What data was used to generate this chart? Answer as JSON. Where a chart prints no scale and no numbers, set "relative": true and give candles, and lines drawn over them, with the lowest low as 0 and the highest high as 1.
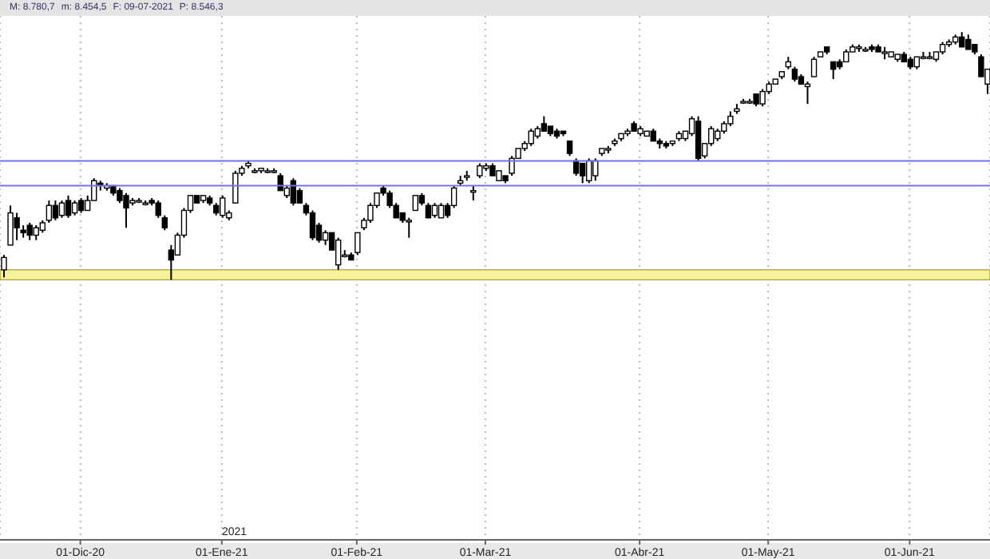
{
  "chart_data": {
    "type": "candlestick",
    "relative": true,
    "annotations": [
      "M: 8.780,7",
      "m: 8.454,5",
      "F: 09-07-2021",
      "P: 8.546,3",
      "2021"
    ],
    "categories": [
      null,
      null,
      null,
      null,
      null,
      null,
      null,
      null,
      null,
      null,
      null,
      null,
      "01-Dic-20",
      null,
      null,
      null,
      null,
      null,
      null,
      null,
      null,
      null,
      null,
      null,
      null,
      null,
      null,
      null,
      null,
      null,
      null,
      null,
      null,
      null,
      "01-Ene-21",
      null,
      null,
      null,
      null,
      null,
      null,
      null,
      null,
      null,
      null,
      null,
      null,
      null,
      null,
      null,
      null,
      null,
      null,
      null,
      null,
      "01-Feb-21",
      null,
      null,
      null,
      null,
      null,
      null,
      null,
      null,
      null,
      null,
      null,
      null,
      null,
      null,
      null,
      null,
      null,
      null,
      null,
      "01-Mar-21",
      null,
      null,
      null,
      null,
      null,
      null,
      null,
      null,
      null,
      null,
      null,
      null,
      null,
      null,
      null,
      null,
      null,
      null,
      null,
      null,
      null,
      null,
      null,
      "01-Abr-21",
      null,
      null,
      null,
      null,
      null,
      null,
      null,
      null,
      null,
      null,
      null,
      null,
      null,
      null,
      null,
      null,
      null,
      null,
      null,
      "01-May-21",
      null,
      null,
      null,
      null,
      null,
      null,
      null,
      null,
      null,
      null,
      null,
      null,
      null,
      null,
      null,
      null,
      null,
      null,
      null,
      null,
      null,
      "01-Jun-21",
      null,
      null,
      null,
      null,
      null,
      null,
      null,
      null,
      null,
      null,
      null,
      null
    ],
    "ohlc": [
      [
        0.04,
        0.1,
        0.01,
        0.09
      ],
      [
        0.14,
        0.3,
        0.14,
        0.27
      ],
      [
        0.25,
        0.27,
        0.16,
        0.21
      ],
      [
        0.2,
        0.22,
        0.17,
        0.19
      ],
      [
        0.22,
        0.23,
        0.16,
        0.18
      ],
      [
        0.18,
        0.22,
        0.16,
        0.21
      ],
      [
        0.2,
        0.24,
        0.19,
        0.23
      ],
      [
        0.24,
        0.32,
        0.23,
        0.3
      ],
      [
        0.3,
        0.32,
        0.24,
        0.25
      ],
      [
        0.26,
        0.32,
        0.25,
        0.31
      ],
      [
        0.32,
        0.34,
        0.25,
        0.26
      ],
      [
        0.27,
        0.32,
        0.26,
        0.31
      ],
      [
        0.32,
        0.33,
        0.27,
        0.28
      ],
      [
        0.28,
        0.34,
        0.28,
        0.32
      ],
      [
        0.32,
        0.41,
        0.32,
        0.4
      ],
      [
        0.39,
        0.4,
        0.36,
        0.38
      ],
      [
        0.37,
        0.39,
        0.36,
        0.38
      ],
      [
        0.38,
        0.38,
        0.34,
        0.35
      ],
      [
        0.36,
        0.37,
        0.31,
        0.32
      ],
      [
        0.34,
        0.35,
        0.21,
        0.29
      ],
      [
        0.31,
        0.33,
        0.3,
        0.32
      ],
      [
        0.32,
        0.33,
        0.31,
        0.32
      ],
      [
        0.31,
        0.32,
        0.3,
        0.31
      ],
      [
        0.32,
        0.33,
        0.3,
        0.31
      ],
      [
        0.31,
        0.32,
        0.25,
        0.26
      ],
      [
        0.25,
        0.26,
        0.2,
        0.21
      ],
      [
        0.12,
        0.14,
        0.0,
        0.08
      ],
      [
        0.1,
        0.19,
        0.1,
        0.18
      ],
      [
        0.18,
        0.29,
        0.17,
        0.28
      ],
      [
        0.28,
        0.34,
        0.27,
        0.34
      ],
      [
        0.34,
        0.34,
        0.31,
        0.31
      ],
      [
        0.32,
        0.34,
        0.31,
        0.34
      ],
      [
        0.33,
        0.34,
        0.3,
        0.31
      ],
      [
        0.3,
        0.31,
        0.26,
        0.27
      ],
      [
        0.26,
        0.34,
        0.25,
        0.33
      ],
      [
        0.25,
        0.28,
        0.24,
        0.27
      ],
      [
        0.31,
        0.44,
        0.31,
        0.43
      ],
      [
        0.43,
        0.46,
        0.42,
        0.45
      ],
      [
        0.46,
        0.48,
        0.45,
        0.47
      ],
      [
        0.44,
        0.45,
        0.43,
        0.44
      ],
      [
        0.44,
        0.45,
        0.43,
        0.45
      ],
      [
        0.44,
        0.45,
        0.43,
        0.44
      ],
      [
        0.44,
        0.45,
        0.43,
        0.44
      ],
      [
        0.42,
        0.43,
        0.36,
        0.36
      ],
      [
        0.34,
        0.38,
        0.33,
        0.37
      ],
      [
        0.4,
        0.41,
        0.3,
        0.31
      ],
      [
        0.36,
        0.37,
        0.31,
        0.31
      ],
      [
        0.3,
        0.31,
        0.26,
        0.27
      ],
      [
        0.27,
        0.28,
        0.16,
        0.17
      ],
      [
        0.22,
        0.23,
        0.15,
        0.16
      ],
      [
        0.16,
        0.2,
        0.14,
        0.19
      ],
      [
        0.19,
        0.19,
        0.12,
        0.12
      ],
      [
        0.06,
        0.17,
        0.04,
        0.16
      ],
      [
        0.1,
        0.12,
        0.09,
        0.1
      ],
      [
        0.1,
        0.11,
        0.08,
        0.08
      ],
      [
        0.11,
        0.19,
        0.1,
        0.19
      ],
      [
        0.21,
        0.25,
        0.2,
        0.24
      ],
      [
        0.24,
        0.31,
        0.23,
        0.3
      ],
      [
        0.3,
        0.35,
        0.29,
        0.35
      ],
      [
        0.37,
        0.38,
        0.34,
        0.35
      ],
      [
        0.35,
        0.36,
        0.29,
        0.3
      ],
      [
        0.3,
        0.31,
        0.25,
        0.25
      ],
      [
        0.27,
        0.27,
        0.23,
        0.24
      ],
      [
        0.24,
        0.25,
        0.17,
        0.24
      ],
      [
        0.28,
        0.34,
        0.28,
        0.34
      ],
      [
        0.34,
        0.35,
        0.3,
        0.31
      ],
      [
        0.3,
        0.31,
        0.25,
        0.25
      ],
      [
        0.26,
        0.31,
        0.25,
        0.3
      ],
      [
        0.25,
        0.31,
        0.25,
        0.3
      ],
      [
        0.3,
        0.31,
        0.25,
        0.26
      ],
      [
        0.3,
        0.38,
        0.29,
        0.37
      ],
      [
        0.39,
        0.42,
        0.38,
        0.4
      ],
      [
        0.42,
        0.44,
        0.4,
        0.42
      ],
      [
        0.36,
        0.38,
        0.32,
        0.36
      ],
      [
        0.42,
        0.47,
        0.41,
        0.46
      ],
      [
        0.45,
        0.47,
        0.44,
        0.46
      ],
      [
        0.46,
        0.47,
        0.42,
        0.42
      ],
      [
        0.4,
        0.44,
        0.4,
        0.44
      ],
      [
        0.42,
        0.42,
        0.39,
        0.4
      ],
      [
        0.43,
        0.5,
        0.42,
        0.49
      ],
      [
        0.49,
        0.53,
        0.49,
        0.53
      ],
      [
        0.53,
        0.56,
        0.52,
        0.55
      ],
      [
        0.55,
        0.61,
        0.54,
        0.6
      ],
      [
        0.58,
        0.62,
        0.57,
        0.61
      ],
      [
        0.63,
        0.66,
        0.6,
        0.6
      ],
      [
        0.62,
        0.62,
        0.58,
        0.59
      ],
      [
        0.6,
        0.61,
        0.57,
        0.58
      ],
      [
        0.6,
        0.6,
        0.58,
        0.59
      ],
      [
        0.56,
        0.56,
        0.5,
        0.51
      ],
      [
        0.48,
        0.49,
        0.42,
        0.43
      ],
      [
        0.47,
        0.47,
        0.39,
        0.42
      ],
      [
        0.4,
        0.49,
        0.39,
        0.48
      ],
      [
        0.42,
        0.49,
        0.4,
        0.48
      ],
      [
        0.51,
        0.53,
        0.5,
        0.53
      ],
      [
        0.53,
        0.54,
        0.51,
        0.53
      ],
      [
        0.55,
        0.57,
        0.54,
        0.56
      ],
      [
        0.57,
        0.59,
        0.56,
        0.59
      ],
      [
        0.59,
        0.61,
        0.58,
        0.6
      ],
      [
        0.63,
        0.64,
        0.6,
        0.6
      ],
      [
        0.59,
        0.62,
        0.58,
        0.61
      ],
      [
        0.58,
        0.6,
        0.58,
        0.6
      ],
      [
        0.6,
        0.61,
        0.56,
        0.56
      ],
      [
        0.56,
        0.57,
        0.53,
        0.55
      ],
      [
        0.55,
        0.56,
        0.53,
        0.54
      ],
      [
        0.55,
        0.56,
        0.54,
        0.56
      ],
      [
        0.57,
        0.6,
        0.56,
        0.59
      ],
      [
        0.57,
        0.6,
        0.56,
        0.6
      ],
      [
        0.59,
        0.66,
        0.58,
        0.65
      ],
      [
        0.64,
        0.66,
        0.48,
        0.49
      ],
      [
        0.5,
        0.55,
        0.49,
        0.55
      ],
      [
        0.55,
        0.62,
        0.54,
        0.61
      ],
      [
        0.57,
        0.61,
        0.56,
        0.6
      ],
      [
        0.6,
        0.64,
        0.59,
        0.63
      ],
      [
        0.63,
        0.68,
        0.62,
        0.66
      ],
      [
        0.68,
        0.71,
        0.67,
        0.69
      ],
      [
        0.72,
        0.73,
        0.71,
        0.72
      ],
      [
        0.72,
        0.73,
        0.71,
        0.72
      ],
      [
        0.75,
        0.75,
        0.7,
        0.71
      ],
      [
        0.71,
        0.77,
        0.7,
        0.76
      ],
      [
        0.76,
        0.8,
        0.75,
        0.79
      ],
      [
        0.79,
        0.81,
        0.79,
        0.81
      ],
      [
        0.82,
        0.84,
        0.81,
        0.84
      ],
      [
        0.86,
        0.9,
        0.85,
        0.88
      ],
      [
        0.85,
        0.86,
        0.8,
        0.81
      ],
      [
        0.82,
        0.83,
        0.79,
        0.79
      ],
      [
        0.78,
        0.8,
        0.71,
        0.79
      ],
      [
        0.82,
        0.9,
        0.82,
        0.89
      ],
      [
        0.9,
        0.92,
        0.9,
        0.92
      ],
      [
        0.94,
        0.94,
        0.91,
        0.92
      ],
      [
        0.88,
        0.88,
        0.81,
        0.85
      ],
      [
        0.88,
        0.89,
        0.85,
        0.86
      ],
      [
        0.88,
        0.93,
        0.88,
        0.92
      ],
      [
        0.92,
        0.95,
        0.92,
        0.94
      ],
      [
        0.94,
        0.95,
        0.92,
        0.94
      ],
      [
        0.93,
        0.94,
        0.92,
        0.93
      ],
      [
        0.94,
        0.95,
        0.92,
        0.93
      ],
      [
        0.94,
        0.95,
        0.92,
        0.92
      ],
      [
        0.92,
        0.94,
        0.89,
        0.92
      ],
      [
        0.9,
        0.92,
        0.9,
        0.92
      ],
      [
        0.89,
        0.91,
        0.88,
        0.91
      ],
      [
        0.91,
        0.92,
        0.88,
        0.88
      ],
      [
        0.89,
        0.9,
        0.85,
        0.86
      ],
      [
        0.86,
        0.9,
        0.85,
        0.9
      ],
      [
        0.9,
        0.92,
        0.89,
        0.9
      ],
      [
        0.9,
        0.92,
        0.89,
        0.9
      ],
      [
        0.89,
        0.92,
        0.88,
        0.92
      ],
      [
        0.92,
        0.96,
        0.91,
        0.95
      ],
      [
        0.95,
        0.97,
        0.94,
        0.96
      ],
      [
        0.96,
        0.99,
        0.95,
        0.98
      ],
      [
        0.98,
        1.0,
        0.94,
        0.94
      ],
      [
        0.97,
        0.99,
        0.93,
        0.93
      ],
      [
        0.95,
        0.95,
        0.91,
        0.92
      ],
      [
        0.9,
        0.91,
        0.82,
        0.82
      ],
      [
        0.79,
        0.85,
        0.75,
        0.85
      ]
    ],
    "ref_lines": [
      {
        "axis": "y",
        "value": 0.38,
        "color": "#6f74ee"
      },
      {
        "axis": "y",
        "value": 0.48,
        "color": "#6f74ee"
      }
    ],
    "bands": [
      {
        "axis": "y",
        "from": 0,
        "to": 0.04,
        "color": "#f6f29a"
      }
    ],
    "grid": "x"
  }
}
